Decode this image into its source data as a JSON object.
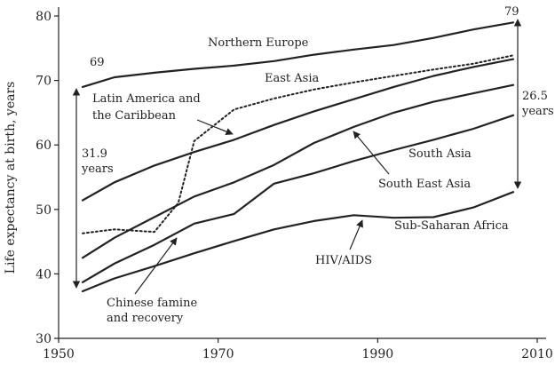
{
  "chart_data": {
    "type": "line",
    "title": "",
    "xlabel": "",
    "ylabel": "Life expectancy at birth, years",
    "xlim": [
      1950,
      2010
    ],
    "ylim": [
      30,
      80
    ],
    "xticks": [
      1950,
      1970,
      1990,
      2010
    ],
    "yticks": [
      30,
      40,
      50,
      60,
      70,
      80
    ],
    "grid": false,
    "legend": "none",
    "series": [
      {
        "name": "Northern Europe",
        "style": "solid",
        "color": "#222222",
        "x": [
          1953,
          1957,
          1962,
          1967,
          1972,
          1977,
          1982,
          1987,
          1992,
          1997,
          2002,
          2007
        ],
        "y": [
          69,
          70.5,
          71.2,
          71.8,
          72.3,
          73.0,
          74.0,
          74.8,
          75.5,
          76.6,
          77.9,
          79
        ]
      },
      {
        "name": "East Asia",
        "style": "dotted",
        "color": "#222222",
        "x": [
          1953,
          1957,
          1962,
          1965,
          1967,
          1972,
          1977,
          1982,
          1987,
          1992,
          1997,
          2002,
          2007
        ],
        "y": [
          46.3,
          46.9,
          46.5,
          51.0,
          60.6,
          65.5,
          67.2,
          68.6,
          69.7,
          70.7,
          71.7,
          72.6,
          73.9
        ]
      },
      {
        "name": "Latin America and the Caribbean",
        "style": "solid",
        "color": "#222222",
        "x": [
          1953,
          1957,
          1962,
          1967,
          1972,
          1977,
          1982,
          1987,
          1992,
          1997,
          2002,
          2007
        ],
        "y": [
          51.4,
          54.2,
          56.8,
          58.9,
          60.8,
          63.1,
          65.2,
          67.1,
          69.0,
          70.7,
          72.1,
          73.3
        ]
      },
      {
        "name": "South East Asia",
        "style": "solid",
        "color": "#222222",
        "x": [
          1953,
          1957,
          1962,
          1967,
          1972,
          1977,
          1982,
          1987,
          1992,
          1997,
          2002,
          2007
        ],
        "y": [
          42.5,
          45.6,
          48.8,
          52.0,
          54.2,
          56.9,
          60.3,
          62.8,
          65.0,
          66.7,
          68.0,
          69.3
        ]
      },
      {
        "name": "South Asia",
        "style": "solid",
        "color": "#222222",
        "x": [
          1953,
          1957,
          1962,
          1967,
          1972,
          1977,
          1982,
          1987,
          1992,
          1997,
          2002,
          2007
        ],
        "y": [
          38.7,
          41.6,
          44.5,
          47.8,
          49.3,
          54.0,
          55.6,
          57.5,
          59.2,
          60.8,
          62.5,
          64.6
        ]
      },
      {
        "name": "Sub-Saharan Africa",
        "style": "solid",
        "color": "#222222",
        "x": [
          1953,
          1957,
          1962,
          1967,
          1972,
          1977,
          1982,
          1987,
          1992,
          1997,
          2002,
          2007
        ],
        "y": [
          37.3,
          39.3,
          41.2,
          43.2,
          45.1,
          46.9,
          48.2,
          49.1,
          48.7,
          48.8,
          50.3,
          52.7
        ]
      }
    ],
    "labels": {
      "northern_europe": "Northern Europe",
      "east_asia": "East Asia",
      "latin_america_1": "Latin America and",
      "latin_america_2": "the Caribbean",
      "south_asia": "South Asia",
      "south_east_asia": "South East Asia",
      "sub_saharan_africa": "Sub-Saharan Africa"
    },
    "annotations": {
      "start_value": "69",
      "end_value": "79",
      "gap_1952_value": "31.9",
      "gap_1952_unit": "years",
      "gap_2007_value": "26.5",
      "gap_2007_unit": "years",
      "hiv_aids": "HIV/AIDS",
      "famine_1": "Chinese famine",
      "famine_2": "and recovery"
    }
  }
}
